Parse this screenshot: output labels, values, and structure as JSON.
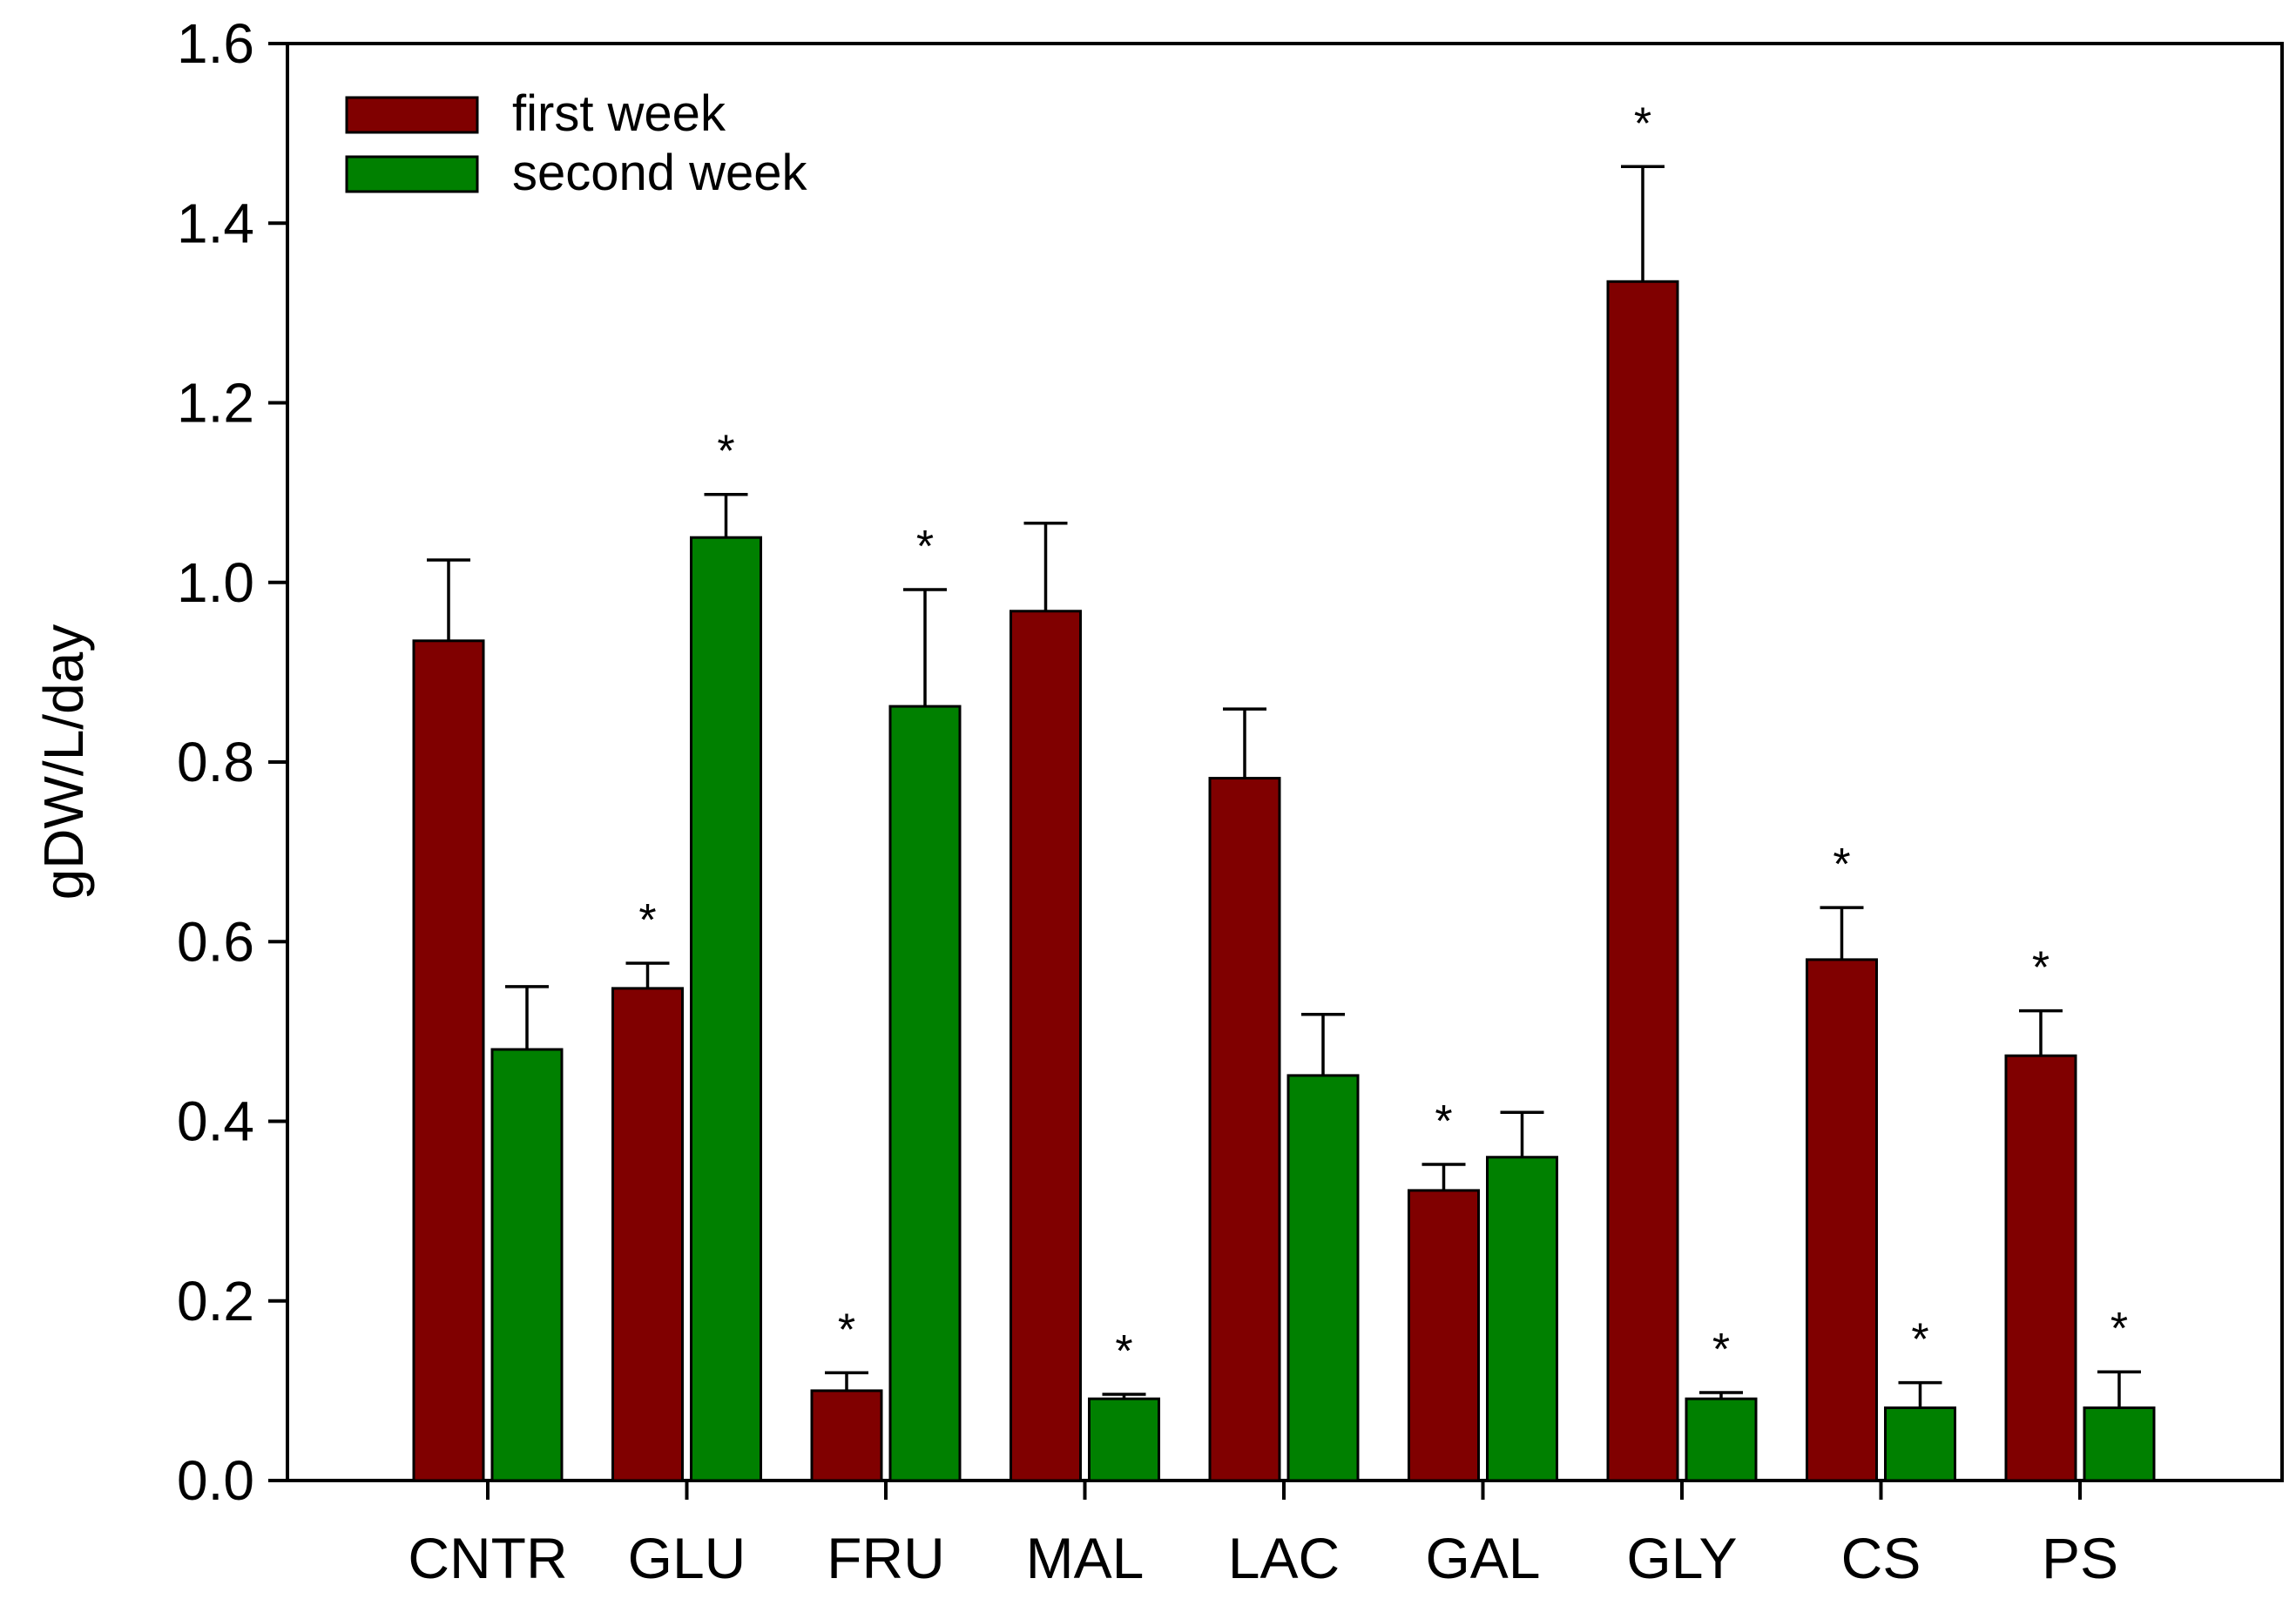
{
  "chart_data": {
    "type": "bar",
    "title": "",
    "xlabel": "",
    "ylabel": "gDW/L/day",
    "ylim": [
      0,
      1.6
    ],
    "yticks": [
      "0.0",
      "0.2",
      "0.4",
      "0.6",
      "0.8",
      "1.0",
      "1.2",
      "1.4",
      "1.6"
    ],
    "grid": false,
    "legend_position": "top-left",
    "categories": [
      "CNTR",
      "GLU",
      "FRU",
      "MAL",
      "LAC",
      "GAL",
      "GLY",
      "CS",
      "PS"
    ],
    "significance_marker": "*",
    "series": [
      {
        "name": "first week",
        "color": "#800000",
        "values": [
          0.935,
          0.548,
          0.1,
          0.968,
          0.782,
          0.323,
          1.335,
          0.58,
          0.473
        ],
        "errors": [
          0.09,
          0.028,
          0.02,
          0.098,
          0.077,
          0.029,
          0.128,
          0.058,
          0.05
        ],
        "significant": [
          false,
          true,
          true,
          false,
          false,
          true,
          true,
          true,
          true
        ]
      },
      {
        "name": "second week",
        "color": "#008000",
        "values": [
          0.48,
          1.05,
          0.862,
          0.091,
          0.451,
          0.36,
          0.091,
          0.081,
          0.081
        ],
        "errors": [
          0.07,
          0.048,
          0.13,
          0.005,
          0.068,
          0.05,
          0.007,
          0.028,
          0.04
        ],
        "significant": [
          false,
          true,
          true,
          true,
          false,
          false,
          true,
          true,
          true
        ]
      }
    ]
  }
}
